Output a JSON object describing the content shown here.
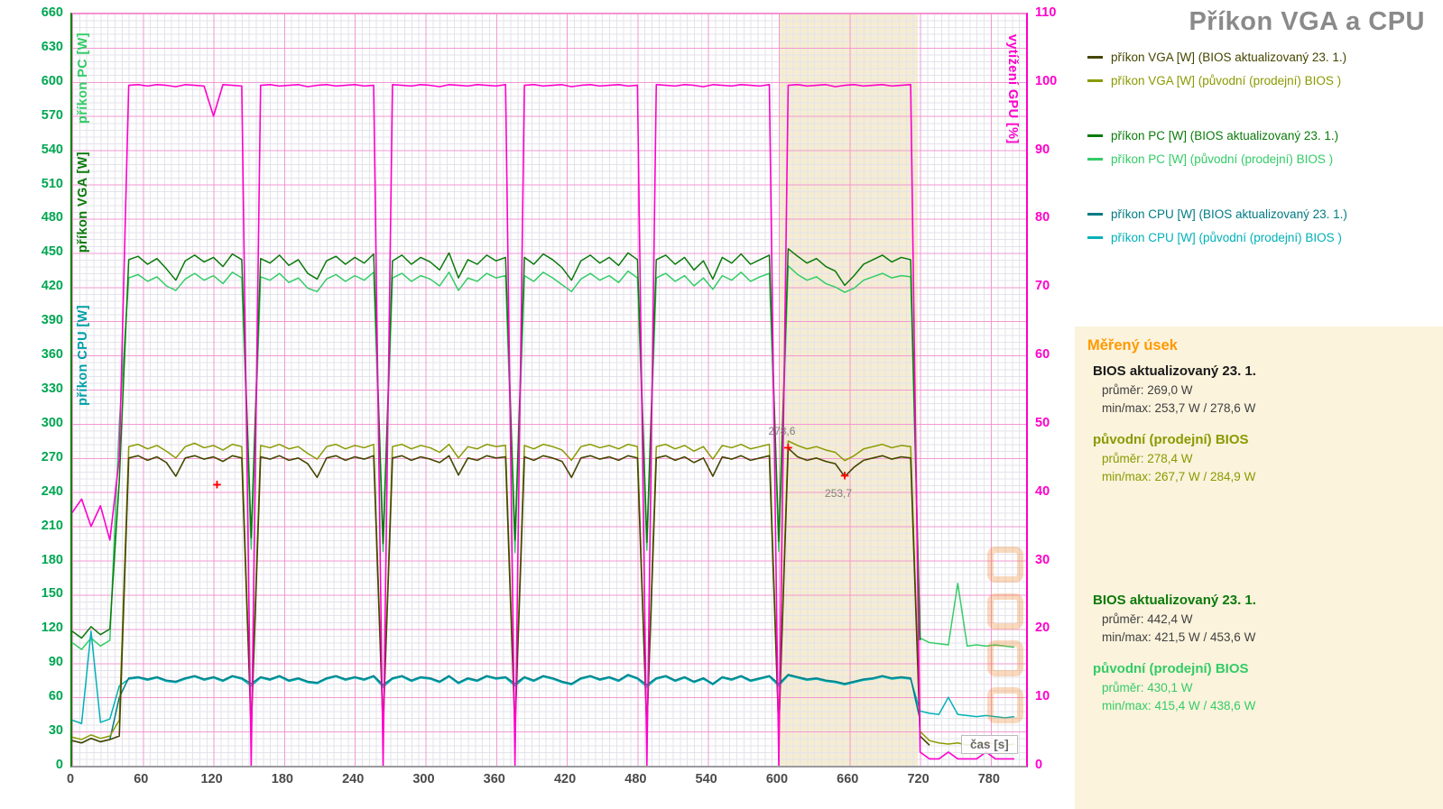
{
  "title": "Příkon VGA a CPU",
  "colors": {
    "title": "#8a8a8a",
    "left_ticks": "#00a651",
    "right_ticks": "#ff00cc",
    "x_ticks": "#4a4a4a",
    "grid_major": "#f48ccd",
    "grid_minor": "#e3e3eb",
    "band": "#f5ecd2",
    "panel": "#fbf3dc",
    "stats_heading": "#ff9900",
    "annotation_text": "#7f7f7f",
    "annotation_marker": "#ff0000",
    "watermark": "#f08428"
  },
  "axes": {
    "left_titles": [
      {
        "text": "příkon PC [W]",
        "color": "#33cc66"
      },
      {
        "text": "příkon VGA [W]",
        "color": "#0b7a0b"
      },
      {
        "text": "příkon CPU [W]",
        "color": "#00a0a8"
      }
    ],
    "right_title": {
      "text": "vytížení GPU [%]",
      "color": "#ff00cc"
    }
  },
  "legend": {
    "items": [
      {
        "label": "příkon VGA [W] (BIOS  aktualizovaný 23. 1.)",
        "color": "#454500"
      },
      {
        "label": "příkon VGA [W] (původní (prodejní) BIOS )",
        "color": "#8a9a00"
      },
      {
        "label": "příkon PC [W]  (BIOS aktualizovaný 23. 1.)",
        "color": "#0b7a0b"
      },
      {
        "label": "příkon PC [W]  (původní (prodejní) BIOS )",
        "color": "#33cc66"
      },
      {
        "label": "příkon CPU [W] (BIOS aktualizovaný 23. 1.)",
        "color": "#007b83"
      },
      {
        "label": "příkon CPU [W] (původní (prodejní) BIOS )",
        "color": "#00b1b7"
      }
    ]
  },
  "stats": {
    "heading": "Měřený úsek",
    "groups": [
      {
        "title": "BIOS aktualizovaný 23. 1.",
        "lines": [
          "průměr: 269,0 W",
          "min/max: 253,7 W / 278,6 W"
        ],
        "title_color": "#1a1a1a",
        "line_color": "#404040",
        "gap": false
      },
      {
        "title": "původní (prodejní) BIOS",
        "lines": [
          "průměr: 278,4 W",
          "min/max: 267,7 W / 284,9 W"
        ],
        "title_color": "#8a9a00",
        "line_color": "#8a9a00",
        "gap": false
      },
      {
        "title": "BIOS aktualizovaný 23. 1.",
        "lines": [
          "průměr: 442,4 W",
          "min/max: 421,5 W / 453,6 W"
        ],
        "title_color": "#0b7a0b",
        "line_color": "#404040",
        "gap": true
      },
      {
        "title": "původní (prodejní) BIOS",
        "lines": [
          "průměr: 430,1 W",
          "min/max: 415,4 W / 438,6 W"
        ],
        "title_color": "#33cc66",
        "line_color": "#33cc66",
        "gap": false
      }
    ]
  },
  "chart_data": {
    "type": "line",
    "title": "Příkon VGA a CPU",
    "xlabel": "čas [s]",
    "x_range": [
      0,
      810
    ],
    "x_tick_step": 60,
    "x_tick_max": 780,
    "y_left": {
      "range": [
        0,
        660
      ],
      "tick_step": 30
    },
    "y_right": {
      "label": "vytížení GPU [%]",
      "range": [
        0,
        110
      ],
      "tick_step": 10
    },
    "grid": true,
    "legend_position": "right",
    "highlight_region": {
      "label": "Měřený úsek",
      "x0": 600,
      "x1": 718
    },
    "x": {
      "start": 0,
      "step": 8,
      "count": 101
    },
    "annotations": [
      {
        "x": 608,
        "y": 278.6,
        "label": "278,6",
        "position": "above"
      },
      {
        "x": 656,
        "y": 253.7,
        "label": "253,7",
        "position": "below"
      },
      {
        "x": 123,
        "y": 246,
        "label": "",
        "position": "above"
      }
    ],
    "series": [
      {
        "id": "pc-original",
        "name": "příkon PC [W] (původní (prodejní) BIOS )",
        "color": "#33cc66",
        "axis": "left",
        "width": 1.5,
        "values": [
          108,
          102,
          112,
          105,
          110,
          300,
          428,
          431,
          425,
          429,
          421,
          417,
          427,
          432,
          426,
          430,
          423,
          433,
          428,
          190,
          429,
          426,
          432,
          424,
          428,
          419,
          416,
          427,
          431,
          425,
          430,
          426,
          433,
          188,
          428,
          432,
          425,
          430,
          427,
          421,
          433,
          417,
          428,
          425,
          432,
          428,
          430,
          187,
          430,
          425,
          433,
          428,
          422,
          416,
          427,
          432,
          426,
          430,
          424,
          434,
          428,
          189,
          428,
          432,
          425,
          430,
          421,
          428,
          418,
          430,
          426,
          433,
          425,
          429,
          432,
          188,
          438.6,
          431,
          426,
          429,
          423,
          420,
          415.4,
          419,
          426,
          429,
          432,
          428,
          430,
          429,
          112,
          108,
          107,
          106,
          160,
          105,
          106,
          105,
          106,
          105,
          104
        ]
      },
      {
        "id": "pc-updated",
        "name": "příkon PC [W] (BIOS aktualizovaný 23. 1.)",
        "color": "#0b7a0b",
        "axis": "left",
        "width": 1.5,
        "values": [
          118,
          112,
          122,
          115,
          120,
          250,
          444,
          447,
          440,
          445,
          436,
          426,
          443,
          448,
          442,
          446,
          438,
          449,
          444,
          200,
          445,
          441,
          448,
          439,
          444,
          432,
          427,
          443,
          447,
          440,
          446,
          441,
          449,
          195,
          443,
          448,
          440,
          446,
          442,
          435,
          450,
          428,
          444,
          440,
          448,
          443,
          446,
          198,
          446,
          440,
          449,
          444,
          437,
          426,
          443,
          448,
          441,
          446,
          439,
          450,
          444,
          196,
          444,
          448,
          440,
          446,
          435,
          443,
          427,
          446,
          441,
          449,
          440,
          444,
          448,
          197,
          453.6,
          447,
          441,
          445,
          438,
          434,
          421.5,
          430,
          440,
          444,
          448,
          442,
          446,
          444,
          110,
          null,
          null,
          null,
          null,
          null,
          null,
          null,
          null,
          null,
          null
        ]
      },
      {
        "id": "cpu-original",
        "name": "příkon CPU [W] (původní (prodejní) BIOS )",
        "color": "#00b1b7",
        "axis": "left",
        "width": 1.5,
        "values": [
          40,
          37,
          118,
          38,
          41,
          70,
          76,
          77,
          75,
          77,
          74,
          73,
          76,
          78,
          75,
          77,
          74,
          78,
          76,
          70,
          77,
          75,
          78,
          74,
          76,
          73,
          72,
          76,
          78,
          75,
          77,
          75,
          78,
          69,
          76,
          78,
          74,
          77,
          76,
          73,
          78,
          72,
          76,
          74,
          78,
          76,
          77,
          70,
          77,
          74,
          78,
          76,
          73,
          71,
          76,
          78,
          75,
          77,
          74,
          79,
          76,
          69,
          76,
          78,
          74,
          77,
          73,
          76,
          71,
          77,
          75,
          78,
          74,
          76,
          78,
          70,
          79,
          77,
          75,
          76,
          74,
          73,
          71,
          73,
          75,
          76,
          78,
          76,
          77,
          76,
          48,
          46,
          45,
          60,
          45,
          44,
          43,
          44,
          43,
          42,
          43
        ]
      },
      {
        "id": "cpu-updated",
        "name": "příkon CPU [W] (BIOS aktualizovaný 23. 1.)",
        "color": "#007b83",
        "axis": "left",
        "width": 1.5,
        "values": [
          22,
          20,
          24,
          21,
          23,
          60,
          77,
          78,
          76,
          78,
          75,
          74,
          77,
          79,
          76,
          78,
          75,
          79,
          77,
          72,
          78,
          76,
          79,
          75,
          77,
          74,
          73,
          77,
          79,
          76,
          78,
          76,
          79,
          71,
          77,
          79,
          75,
          78,
          77,
          74,
          79,
          73,
          77,
          75,
          79,
          77,
          78,
          72,
          78,
          75,
          79,
          77,
          74,
          72,
          77,
          79,
          76,
          78,
          75,
          80,
          77,
          71,
          77,
          79,
          75,
          78,
          74,
          77,
          72,
          78,
          76,
          79,
          75,
          77,
          79,
          72,
          80,
          78,
          76,
          77,
          75,
          74,
          72,
          74,
          76,
          77,
          79,
          77,
          78,
          77,
          40,
          null,
          null,
          null,
          null,
          null,
          null,
          null,
          null,
          null,
          null
        ]
      },
      {
        "id": "vga-original",
        "name": "příkon VGA [W] (původní (prodejní) BIOS )",
        "color": "#8a9a00",
        "axis": "left",
        "width": 1.5,
        "values": [
          25,
          23,
          27,
          24,
          26,
          40,
          280,
          282,
          278,
          281,
          276,
          270,
          280,
          283,
          279,
          281,
          277,
          282,
          280,
          36,
          281,
          279,
          282,
          278,
          280,
          274,
          269,
          280,
          282,
          278,
          281,
          279,
          282,
          35,
          280,
          282,
          278,
          281,
          279,
          275,
          282,
          270,
          280,
          278,
          282,
          280,
          281,
          34,
          281,
          278,
          282,
          280,
          277,
          268,
          280,
          282,
          279,
          281,
          278,
          282,
          280,
          35,
          280,
          282,
          278,
          281,
          276,
          280,
          269,
          281,
          279,
          282,
          278,
          280,
          282,
          36,
          284.9,
          281,
          278,
          280,
          277,
          275,
          267.7,
          272,
          278,
          280,
          282,
          279,
          281,
          280,
          30,
          22,
          20,
          19,
          20,
          18,
          19,
          20,
          19,
          18,
          19
        ]
      },
      {
        "id": "vga-updated",
        "name": "příkon VGA [W] (BIOS aktualizovaný 23. 1.)",
        "color": "#454500",
        "axis": "left",
        "width": 1.6,
        "values": [
          22,
          20,
          24,
          21,
          23,
          26,
          270,
          272,
          268,
          271,
          266,
          254,
          270,
          272,
          269,
          271,
          267,
          272,
          270,
          30,
          271,
          269,
          272,
          268,
          270,
          265,
          253,
          270,
          272,
          268,
          271,
          269,
          272,
          32,
          270,
          272,
          268,
          271,
          269,
          266,
          272,
          255,
          270,
          268,
          272,
          270,
          271,
          30,
          271,
          268,
          272,
          270,
          267,
          253,
          270,
          272,
          269,
          271,
          268,
          272,
          270,
          31,
          270,
          272,
          268,
          271,
          266,
          270,
          254,
          271,
          269,
          272,
          268,
          270,
          272,
          30,
          278.6,
          271,
          268,
          270,
          267,
          265,
          253.7,
          262,
          268,
          270,
          272,
          269,
          271,
          270,
          26,
          18,
          null,
          null,
          null,
          null,
          null,
          null,
          null,
          null,
          null
        ]
      },
      {
        "id": "gpu-util",
        "name": "vytížení GPU [%]",
        "color": "#ff00cc",
        "axis": "right",
        "width": 1.6,
        "values": [
          37,
          39,
          35,
          38,
          33,
          45,
          99.5,
          99.6,
          99.4,
          99.6,
          99.5,
          99.3,
          99.6,
          99.5,
          99.4,
          95,
          99.6,
          99.5,
          99.4,
          0,
          99.5,
          99.6,
          99.4,
          99.5,
          99.6,
          99.3,
          99.5,
          99.6,
          99.4,
          99.5,
          99.6,
          99.4,
          99.5,
          0,
          99.6,
          99.5,
          99.4,
          99.6,
          99.5,
          99.3,
          99.6,
          99.5,
          99.4,
          99.6,
          99.5,
          99.4,
          99.6,
          0,
          99.5,
          99.6,
          99.4,
          99.5,
          99.6,
          99.3,
          99.5,
          99.6,
          99.4,
          99.5,
          99.6,
          99.4,
          99.5,
          0,
          99.6,
          99.5,
          99.4,
          99.6,
          99.5,
          99.3,
          99.6,
          99.5,
          99.4,
          99.6,
          99.5,
          99.4,
          99.6,
          0,
          99.5,
          99.6,
          99.4,
          99.5,
          99.6,
          99.3,
          99.5,
          99.6,
          99.4,
          99.5,
          99.6,
          99.4,
          99.5,
          99.6,
          2,
          1,
          1,
          2,
          1,
          1,
          1,
          2,
          1,
          1,
          1
        ]
      }
    ]
  }
}
